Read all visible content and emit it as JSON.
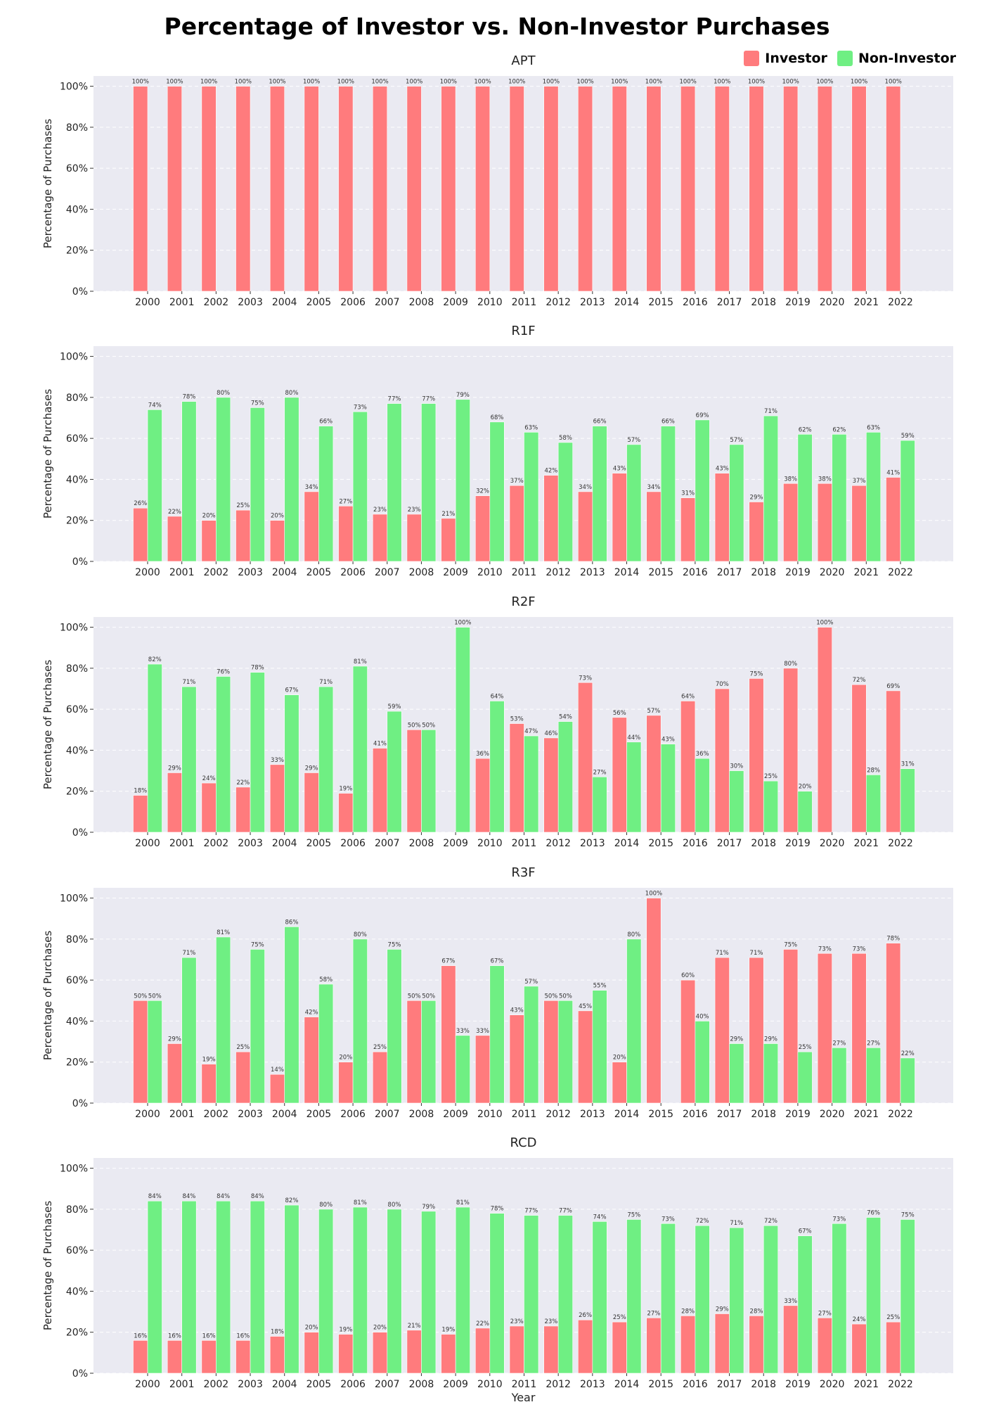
{
  "title": "Percentage of Investor vs. Non-Investor Purchases",
  "colors": {
    "investor": "#ff7b7d",
    "non_investor": "#6fef83",
    "plot_bg": "#eaeaf2",
    "grid": "#ffffff"
  },
  "legend": {
    "position": "top-right",
    "items": [
      {
        "label": "Investor",
        "color": "#ff7b7d"
      },
      {
        "label": "Non-Investor",
        "color": "#6fef83"
      }
    ]
  },
  "chart_data": [
    {
      "type": "bar",
      "title": "APT",
      "ylabel": "Percentage of Purchases",
      "xlabel": "",
      "ylim": [
        0,
        105
      ],
      "yticks": [
        "0%",
        "20%",
        "40%",
        "60%",
        "80%",
        "100%"
      ],
      "grid": true,
      "categories": [
        "2000",
        "2001",
        "2002",
        "2003",
        "2004",
        "2005",
        "2006",
        "2007",
        "2008",
        "2009",
        "2010",
        "2011",
        "2012",
        "2013",
        "2014",
        "2015",
        "2016",
        "2017",
        "2018",
        "2019",
        "2020",
        "2021",
        "2022"
      ],
      "series": [
        {
          "name": "Investor",
          "values": [
            100,
            100,
            100,
            100,
            100,
            100,
            100,
            100,
            100,
            100,
            100,
            100,
            100,
            100,
            100,
            100,
            100,
            100,
            100,
            100,
            100,
            100,
            100
          ],
          "labels": [
            "100%",
            "100%",
            "100%",
            "100%",
            "100%",
            "100%",
            "100%",
            "100%",
            "100%",
            "100%",
            "100%",
            "100%",
            "100%",
            "100%",
            "100%",
            "100%",
            "100%",
            "100%",
            "100%",
            "100%",
            "100%",
            "100%",
            "100%"
          ]
        },
        {
          "name": "Non-Investor",
          "values": [
            0,
            0,
            0,
            0,
            0,
            0,
            0,
            0,
            0,
            0,
            0,
            0,
            0,
            0,
            0,
            0,
            0,
            0,
            0,
            0,
            0,
            0,
            0
          ],
          "labels": [
            "",
            "",
            "",
            "",
            "",
            "",
            "",
            "",
            "",
            "",
            "",
            "",
            "",
            "",
            "",
            "",
            "",
            "",
            "",
            "",
            "",
            "",
            ""
          ]
        }
      ]
    },
    {
      "type": "bar",
      "title": "R1F",
      "ylabel": "Percentage of Purchases",
      "xlabel": "",
      "ylim": [
        0,
        105
      ],
      "yticks": [
        "0%",
        "20%",
        "40%",
        "60%",
        "80%",
        "100%"
      ],
      "grid": true,
      "categories": [
        "2000",
        "2001",
        "2002",
        "2003",
        "2004",
        "2005",
        "2006",
        "2007",
        "2008",
        "2009",
        "2010",
        "2011",
        "2012",
        "2013",
        "2014",
        "2015",
        "2016",
        "2017",
        "2018",
        "2019",
        "2020",
        "2021",
        "2022"
      ],
      "series": [
        {
          "name": "Investor",
          "values": [
            26,
            22,
            20,
            25,
            20,
            34,
            27,
            23,
            23,
            21,
            32,
            37,
            42,
            34,
            43,
            34,
            31,
            43,
            29,
            38,
            38,
            37,
            41
          ],
          "labels": [
            "26%",
            "22%",
            "20%",
            "25%",
            "20%",
            "34%",
            "27%",
            "23%",
            "23%",
            "21%",
            "32%",
            "37%",
            "42%",
            "34%",
            "43%",
            "34%",
            "31%",
            "43%",
            "29%",
            "38%",
            "38%",
            "37%",
            "41%"
          ]
        },
        {
          "name": "Non-Investor",
          "values": [
            74,
            78,
            80,
            75,
            80,
            66,
            73,
            77,
            77,
            79,
            68,
            63,
            58,
            66,
            57,
            66,
            69,
            57,
            71,
            62,
            62,
            63,
            59
          ],
          "labels": [
            "74%",
            "78%",
            "80%",
            "75%",
            "80%",
            "66%",
            "73%",
            "77%",
            "77%",
            "79%",
            "68%",
            "63%",
            "58%",
            "66%",
            "57%",
            "66%",
            "69%",
            "57%",
            "71%",
            "62%",
            "62%",
            "63%",
            "59%"
          ]
        }
      ]
    },
    {
      "type": "bar",
      "title": "R2F",
      "ylabel": "Percentage of Purchases",
      "xlabel": "",
      "ylim": [
        0,
        105
      ],
      "yticks": [
        "0%",
        "20%",
        "40%",
        "60%",
        "80%",
        "100%"
      ],
      "grid": true,
      "categories": [
        "2000",
        "2001",
        "2002",
        "2003",
        "2004",
        "2005",
        "2006",
        "2007",
        "2008",
        "2009",
        "2010",
        "2011",
        "2012",
        "2013",
        "2014",
        "2015",
        "2016",
        "2017",
        "2018",
        "2019",
        "2020",
        "2021",
        "2022"
      ],
      "series": [
        {
          "name": "Investor",
          "values": [
            18,
            29,
            24,
            22,
            33,
            29,
            19,
            41,
            50,
            0,
            36,
            53,
            46,
            73,
            56,
            57,
            64,
            70,
            75,
            80,
            100,
            72,
            69
          ],
          "labels": [
            "18%",
            "29%",
            "24%",
            "22%",
            "33%",
            "29%",
            "19%",
            "41%",
            "50%",
            "",
            "36%",
            "53%",
            "46%",
            "73%",
            "56%",
            "57%",
            "64%",
            "70%",
            "75%",
            "80%",
            "100%",
            "72%",
            "69%"
          ]
        },
        {
          "name": "Non-Investor",
          "values": [
            82,
            71,
            76,
            78,
            67,
            71,
            81,
            59,
            50,
            100,
            64,
            47,
            54,
            27,
            44,
            43,
            36,
            30,
            25,
            20,
            0,
            28,
            31
          ],
          "labels": [
            "82%",
            "71%",
            "76%",
            "78%",
            "67%",
            "71%",
            "81%",
            "59%",
            "50%",
            "100%",
            "64%",
            "47%",
            "54%",
            "27%",
            "44%",
            "43%",
            "36%",
            "30%",
            "25%",
            "20%",
            "",
            "28%",
            "31%"
          ]
        }
      ]
    },
    {
      "type": "bar",
      "title": "R3F",
      "ylabel": "Percentage of Purchases",
      "xlabel": "",
      "ylim": [
        0,
        105
      ],
      "yticks": [
        "0%",
        "20%",
        "40%",
        "60%",
        "80%",
        "100%"
      ],
      "grid": true,
      "categories": [
        "2000",
        "2001",
        "2002",
        "2003",
        "2004",
        "2005",
        "2006",
        "2007",
        "2008",
        "2009",
        "2010",
        "2011",
        "2012",
        "2013",
        "2014",
        "2015",
        "2016",
        "2017",
        "2018",
        "2019",
        "2020",
        "2021",
        "2022"
      ],
      "series": [
        {
          "name": "Investor",
          "values": [
            50,
            29,
            19,
            25,
            14,
            42,
            20,
            25,
            50,
            67,
            33,
            43,
            50,
            45,
            20,
            100,
            60,
            71,
            71,
            75,
            73,
            73,
            78
          ],
          "labels": [
            "50%",
            "29%",
            "19%",
            "25%",
            "14%",
            "42%",
            "20%",
            "25%",
            "50%",
            "67%",
            "33%",
            "43%",
            "50%",
            "45%",
            "20%",
            "100%",
            "60%",
            "71%",
            "71%",
            "75%",
            "73%",
            "73%",
            "78%"
          ]
        },
        {
          "name": "Non-Investor",
          "values": [
            50,
            71,
            81,
            75,
            86,
            58,
            80,
            75,
            50,
            33,
            67,
            57,
            50,
            55,
            80,
            0,
            40,
            29,
            29,
            25,
            27,
            27,
            22
          ],
          "labels": [
            "50%",
            "71%",
            "81%",
            "75%",
            "86%",
            "58%",
            "80%",
            "75%",
            "50%",
            "33%",
            "67%",
            "57%",
            "50%",
            "55%",
            "80%",
            "",
            "40%",
            "29%",
            "29%",
            "25%",
            "27%",
            "27%",
            "22%"
          ]
        }
      ]
    },
    {
      "type": "bar",
      "title": "RCD",
      "ylabel": "Percentage of Purchases",
      "xlabel": "Year",
      "ylim": [
        0,
        105
      ],
      "yticks": [
        "0%",
        "20%",
        "40%",
        "60%",
        "80%",
        "100%"
      ],
      "grid": true,
      "categories": [
        "2000",
        "2001",
        "2002",
        "2003",
        "2004",
        "2005",
        "2006",
        "2007",
        "2008",
        "2009",
        "2010",
        "2011",
        "2012",
        "2013",
        "2014",
        "2015",
        "2016",
        "2017",
        "2018",
        "2019",
        "2020",
        "2021",
        "2022"
      ],
      "series": [
        {
          "name": "Investor",
          "values": [
            16,
            16,
            16,
            16,
            18,
            20,
            19,
            20,
            21,
            19,
            22,
            23,
            23,
            26,
            25,
            27,
            28,
            29,
            28,
            33,
            27,
            24,
            25
          ],
          "labels": [
            "16%",
            "16%",
            "16%",
            "16%",
            "18%",
            "20%",
            "19%",
            "20%",
            "21%",
            "19%",
            "22%",
            "23%",
            "23%",
            "26%",
            "25%",
            "27%",
            "28%",
            "29%",
            "28%",
            "33%",
            "27%",
            "24%",
            "25%"
          ]
        },
        {
          "name": "Non-Investor",
          "values": [
            84,
            84,
            84,
            84,
            82,
            80,
            81,
            80,
            79,
            81,
            78,
            77,
            77,
            74,
            75,
            73,
            72,
            71,
            72,
            67,
            73,
            76,
            75
          ],
          "labels": [
            "84%",
            "84%",
            "84%",
            "84%",
            "82%",
            "80%",
            "81%",
            "80%",
            "79%",
            "81%",
            "78%",
            "77%",
            "77%",
            "74%",
            "75%",
            "73%",
            "72%",
            "71%",
            "72%",
            "67%",
            "73%",
            "76%",
            "75%"
          ]
        }
      ]
    }
  ]
}
